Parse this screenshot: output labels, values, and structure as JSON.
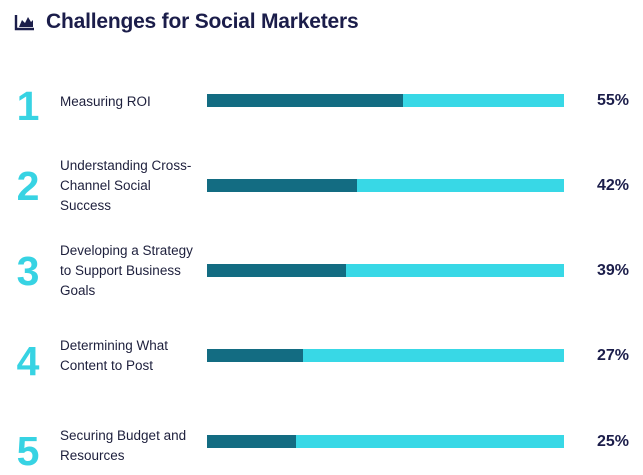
{
  "header": {
    "title": "Challenges for Social Marketers",
    "icon": "area-chart-icon"
  },
  "colors": {
    "title": "#1b1d4a",
    "rank": "#37d3e3",
    "bar_track": "#38d8e6",
    "bar_fill": "#136c82"
  },
  "chart_data": {
    "type": "bar",
    "orientation": "horizontal",
    "title": "Challenges for Social Marketers",
    "categories": [
      "Measuring ROI",
      "Understanding Cross-Channel Social Success",
      "Developing a Strategy to Support Business Goals",
      "Determining What Content to Post",
      "Securing Budget and Resources"
    ],
    "values": [
      55,
      42,
      39,
      27,
      25
    ],
    "ylim": [
      0,
      100
    ],
    "grid": false
  },
  "rows": [
    {
      "rank": "1",
      "label": "Measuring ROI",
      "value": 55,
      "pct": "55%"
    },
    {
      "rank": "2",
      "label": "Understanding Cross-Channel Social Success",
      "value": 42,
      "pct": "42%"
    },
    {
      "rank": "3",
      "label": "Developing a Strategy to Support Business Goals",
      "value": 39,
      "pct": "39%"
    },
    {
      "rank": "4",
      "label": "Determining What Content to Post",
      "value": 27,
      "pct": "27%"
    },
    {
      "rank": "5",
      "label": "Securing Budget and Resources",
      "value": 25,
      "pct": "25%"
    }
  ]
}
